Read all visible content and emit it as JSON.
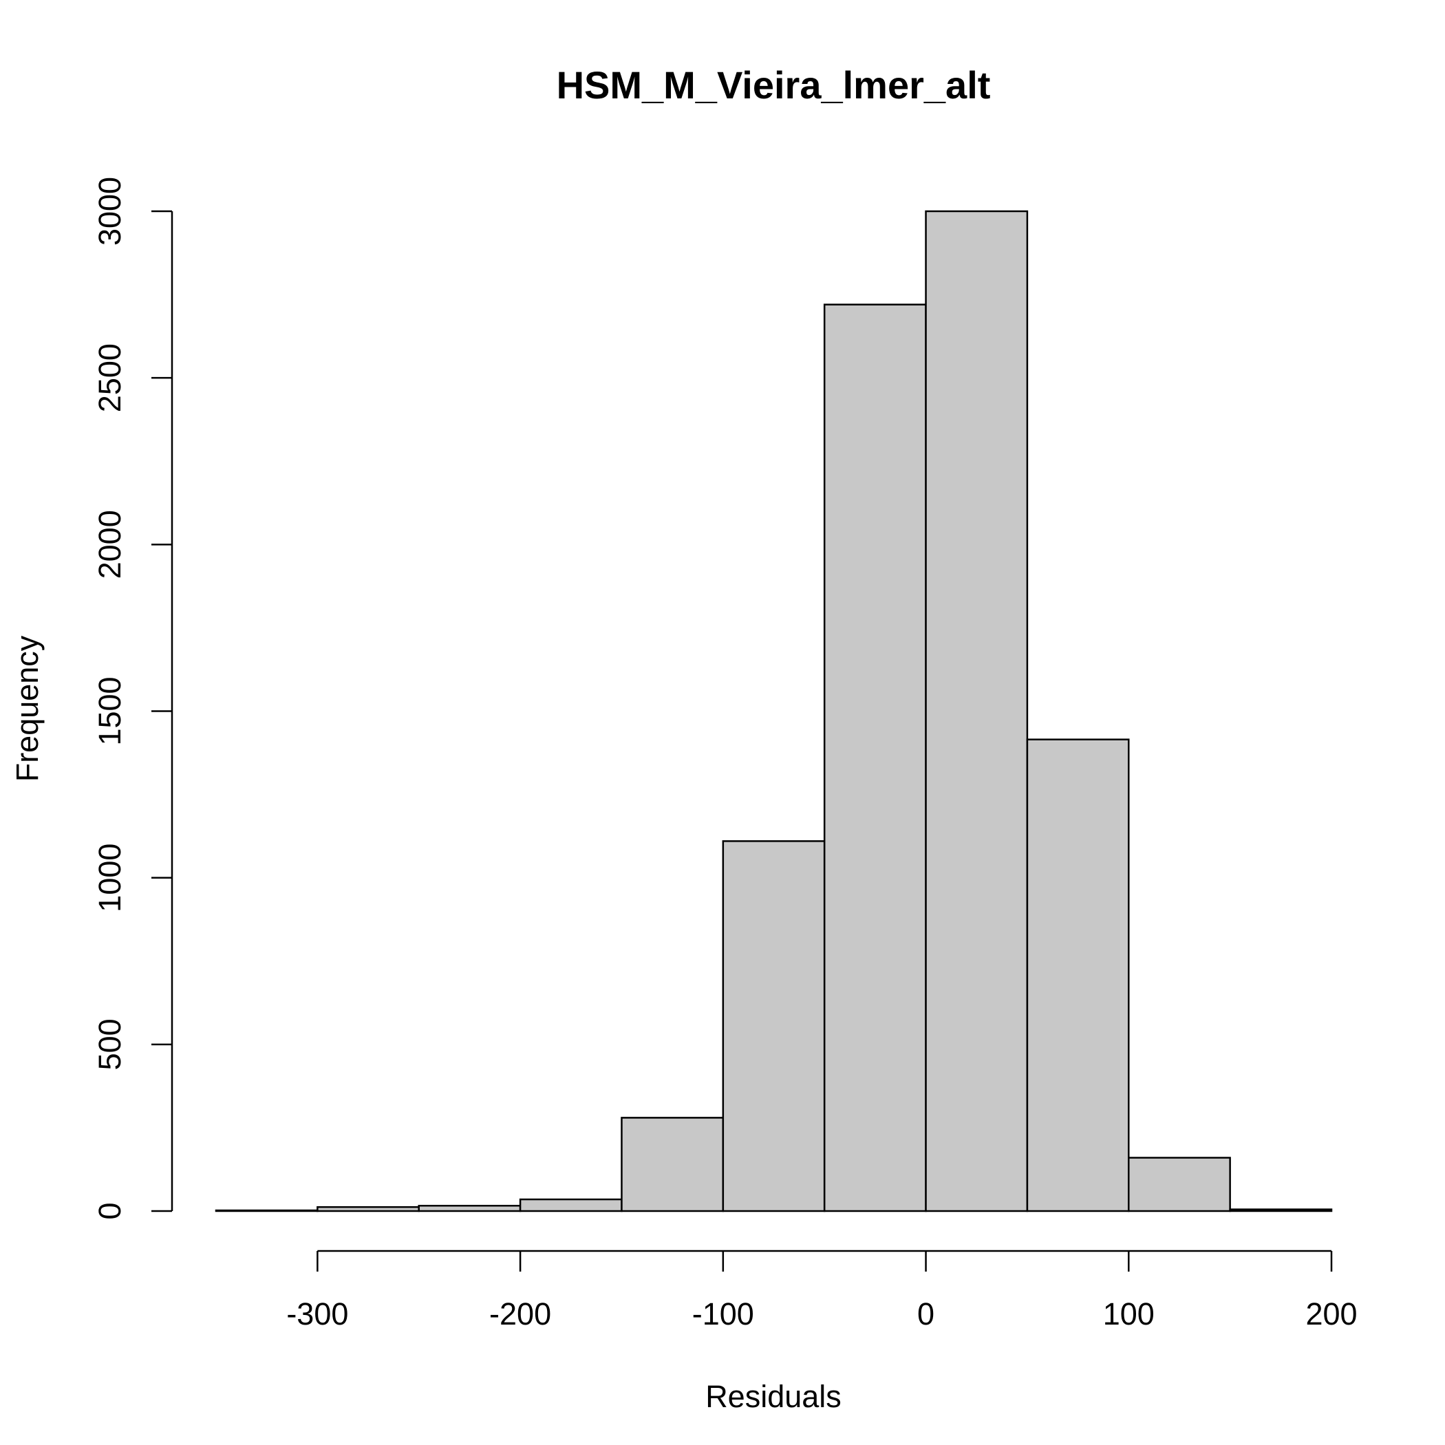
{
  "chart_data": {
    "type": "bar",
    "title": "HSM_M_Vieira_lmer_alt",
    "xlabel": "Residuals",
    "ylabel": "Frequency",
    "bin_edges": [
      -350,
      -300,
      -250,
      -200,
      -150,
      -100,
      -50,
      0,
      50,
      100,
      150,
      200
    ],
    "values": [
      2,
      12,
      16,
      35,
      280,
      1110,
      2720,
      3000,
      1415,
      160,
      5
    ],
    "xlim": [
      -350,
      200
    ],
    "ylim": [
      0,
      3000
    ],
    "xticks": [
      -300,
      -200,
      -100,
      0,
      100,
      200
    ],
    "xtick_labels": [
      "-300",
      "-200",
      "-100",
      "0",
      "100",
      "200"
    ],
    "yticks": [
      0,
      500,
      1000,
      1500,
      2000,
      2500,
      3000
    ],
    "ytick_labels": [
      "0",
      "500",
      "1000",
      "1500",
      "2000",
      "2500",
      "3000"
    ],
    "grid": false,
    "bar_fill": "#c8c8c8",
    "bar_stroke": "#000000"
  }
}
